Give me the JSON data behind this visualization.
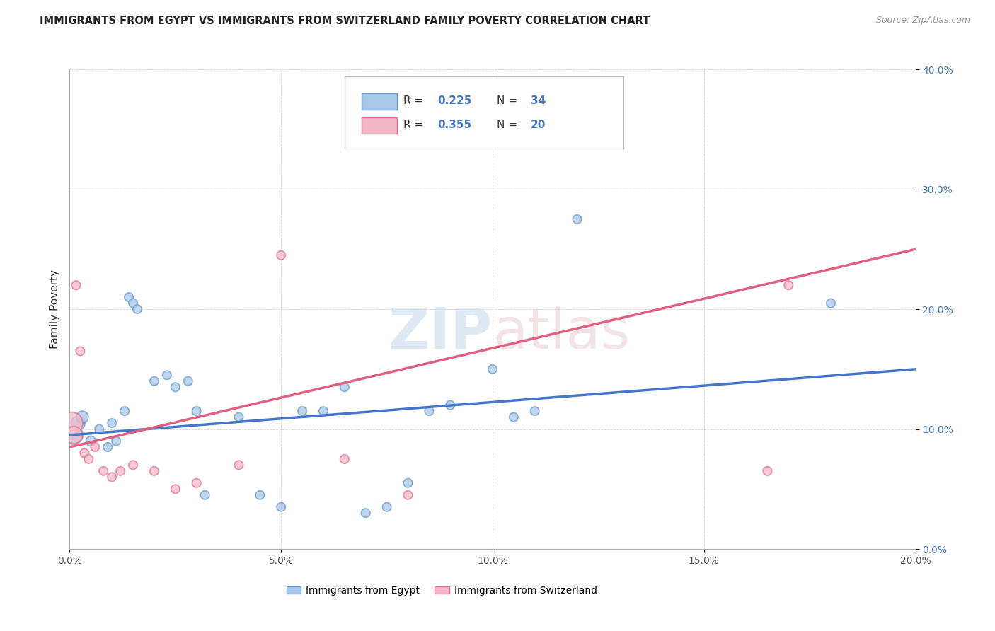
{
  "title": "IMMIGRANTS FROM EGYPT VS IMMIGRANTS FROM SWITZERLAND FAMILY POVERTY CORRELATION CHART",
  "source": "Source: ZipAtlas.com",
  "xlabel_ticks": [
    "0.0%",
    "5.0%",
    "10.0%",
    "15.0%",
    "20.0%"
  ],
  "xlabel_vals": [
    0.0,
    5.0,
    10.0,
    15.0,
    20.0
  ],
  "ylabel_ticks": [
    "0.0%",
    "10.0%",
    "20.0%",
    "30.0%",
    "40.0%"
  ],
  "ylabel_vals": [
    0.0,
    10.0,
    20.0,
    30.0,
    40.0
  ],
  "xlim": [
    0.0,
    20.0
  ],
  "ylim": [
    0.0,
    40.0
  ],
  "egypt_color": "#a8c8e8",
  "egypt_edge_color": "#6699cc",
  "switzerland_color": "#f4b8c8",
  "switzerland_edge_color": "#e07090",
  "egypt_R": 0.225,
  "egypt_N": 34,
  "switzerland_R": 0.355,
  "switzerland_N": 20,
  "legend_label_egypt": "Immigrants from Egypt",
  "legend_label_switzerland": "Immigrants from Switzerland",
  "legend_text_color": "#4477bb",
  "egypt_line_color": "#4477cc",
  "switzerland_line_color": "#e06080",
  "egypt_scatter_x": [
    0.1,
    0.2,
    0.3,
    0.5,
    0.7,
    0.9,
    1.0,
    1.1,
    1.3,
    1.4,
    1.5,
    1.6,
    2.0,
    2.3,
    2.5,
    2.8,
    3.0,
    3.2,
    4.0,
    4.5,
    5.0,
    5.5,
    6.0,
    6.5,
    7.0,
    7.5,
    8.0,
    8.5,
    9.0,
    10.0,
    10.5,
    11.0,
    12.0,
    18.0
  ],
  "egypt_scatter_y": [
    9.5,
    10.5,
    11.0,
    9.0,
    10.0,
    8.5,
    10.5,
    9.0,
    11.5,
    21.0,
    20.5,
    20.0,
    14.0,
    14.5,
    13.5,
    14.0,
    11.5,
    4.5,
    11.0,
    4.5,
    3.5,
    11.5,
    11.5,
    13.5,
    3.0,
    3.5,
    5.5,
    11.5,
    12.0,
    15.0,
    11.0,
    11.5,
    27.5,
    20.5
  ],
  "egypt_scatter_size": [
    350,
    200,
    150,
    100,
    80,
    80,
    80,
    80,
    80,
    80,
    80,
    80,
    80,
    80,
    80,
    80,
    80,
    80,
    80,
    80,
    80,
    80,
    80,
    80,
    80,
    80,
    80,
    80,
    80,
    80,
    80,
    80,
    80,
    80
  ],
  "switzerland_scatter_x": [
    0.05,
    0.1,
    0.15,
    0.25,
    0.35,
    0.45,
    0.6,
    0.8,
    1.0,
    1.2,
    1.5,
    2.0,
    2.5,
    3.0,
    4.0,
    5.0,
    6.5,
    8.0,
    16.5,
    17.0
  ],
  "switzerland_scatter_y": [
    10.5,
    9.5,
    22.0,
    16.5,
    8.0,
    7.5,
    8.5,
    6.5,
    6.0,
    6.5,
    7.0,
    6.5,
    5.0,
    5.5,
    7.0,
    24.5,
    7.5,
    4.5,
    6.5,
    22.0
  ],
  "switzerland_scatter_size": [
    500,
    300,
    80,
    80,
    80,
    80,
    80,
    80,
    80,
    80,
    80,
    80,
    80,
    80,
    80,
    80,
    80,
    80,
    80,
    80
  ],
  "egypt_trend_x0": 0.0,
  "egypt_trend_x1": 20.0,
  "egypt_trend_y0": 9.5,
  "egypt_trend_y1": 15.0,
  "switzerland_trend_x0": 0.0,
  "switzerland_trend_x1": 20.0,
  "switzerland_trend_y0": 8.5,
  "switzerland_trend_y1": 25.0
}
